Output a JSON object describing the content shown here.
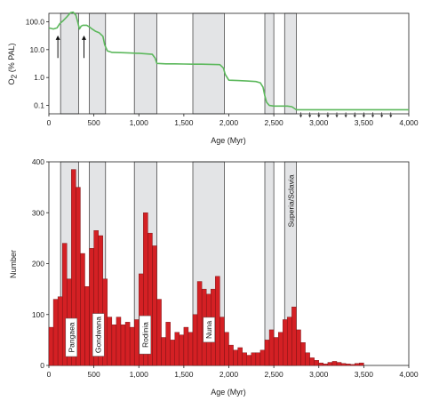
{
  "chart_data": [
    {
      "type": "line",
      "ylabel": "O",
      "ylabel_sub": "2",
      "ylabel_rest": " (% PAL)",
      "xlabel": "Age (Myr)",
      "yscale": "log",
      "ylim": [
        0.05,
        200
      ],
      "xlim": [
        0,
        4000
      ],
      "yticks": [
        {
          "v": 100,
          "label": "100.0"
        },
        {
          "v": 10,
          "label": "10.0"
        },
        {
          "v": 1,
          "label": "1.0"
        },
        {
          "v": 0.1,
          "label": "0.1"
        }
      ],
      "xticks": [
        {
          "v": 0,
          "label": "0"
        },
        {
          "v": 500,
          "label": "500"
        },
        {
          "v": 1000,
          "label": "1,000"
        },
        {
          "v": 1500,
          "label": "1,500"
        },
        {
          "v": 2000,
          "label": "2,000"
        },
        {
          "v": 2500,
          "label": "2,500"
        },
        {
          "v": 3000,
          "label": "3,000"
        },
        {
          "v": 3500,
          "label": "3,500"
        },
        {
          "v": 4000,
          "label": "4,000"
        }
      ],
      "shaded_intervals": [
        [
          130,
          330
        ],
        [
          450,
          630
        ],
        [
          950,
          1200
        ],
        [
          1600,
          1950
        ],
        [
          2400,
          2500
        ],
        [
          2620,
          2750
        ]
      ],
      "series": [
        {
          "color": "#5cb85c",
          "x": [
            0,
            50,
            90,
            120,
            160,
            200,
            240,
            270,
            300,
            320,
            340,
            360,
            380,
            420,
            450,
            480,
            520,
            560,
            600,
            620,
            650,
            700,
            800,
            900,
            980,
            1000,
            1050,
            1100,
            1150,
            1180,
            1200,
            1300,
            1400,
            1500,
            1600,
            1700,
            1800,
            1900,
            1940,
            1960,
            2000,
            2100,
            2200,
            2300,
            2350,
            2380,
            2400,
            2420,
            2450,
            2500,
            2600,
            2650,
            2700,
            2750,
            2800,
            3000,
            3500,
            4000
          ],
          "y": [
            60,
            55,
            60,
            85,
            110,
            150,
            210,
            220,
            170,
            100,
            55,
            70,
            75,
            75,
            65,
            55,
            45,
            40,
            30,
            15,
            9,
            8,
            7.8,
            7.6,
            7.4,
            7.4,
            7.2,
            7,
            6.8,
            5,
            3.2,
            3.1,
            3.1,
            3.05,
            3,
            3,
            2.95,
            2.9,
            2.2,
            1.3,
            0.8,
            0.78,
            0.75,
            0.72,
            0.65,
            0.45,
            0.22,
            0.13,
            0.1,
            0.095,
            0.095,
            0.095,
            0.09,
            0.07,
            0.07,
            0.07,
            0.07,
            0.07
          ]
        }
      ],
      "arrows_up": [
        100,
        390
      ],
      "arrows_down": [
        2800,
        2900,
        3000,
        3100,
        3200,
        3300,
        3400,
        3500,
        3600,
        3700,
        3800
      ]
    },
    {
      "type": "bar",
      "xlabel": "Age (Myr)",
      "ylabel": "Number",
      "xlim": [
        0,
        4000
      ],
      "ylim": [
        0,
        400
      ],
      "bin_width": 50,
      "bar_color": "#d42024",
      "yticks": [
        0,
        100,
        200,
        300,
        400
      ],
      "xticks": [
        {
          "v": 0,
          "label": "0"
        },
        {
          "v": 500,
          "label": "500"
        },
        {
          "v": 1000,
          "label": "1,000"
        },
        {
          "v": 1500,
          "label": "1,500"
        },
        {
          "v": 2000,
          "label": "2,000"
        },
        {
          "v": 2500,
          "label": "2,500"
        },
        {
          "v": 3000,
          "label": "3,000"
        },
        {
          "v": 3500,
          "label": "3,500"
        },
        {
          "v": 4000,
          "label": "4,000"
        }
      ],
      "bins_start": [
        0,
        50,
        100,
        150,
        200,
        250,
        300,
        350,
        400,
        450,
        500,
        550,
        600,
        650,
        700,
        750,
        800,
        850,
        900,
        950,
        1000,
        1050,
        1100,
        1150,
        1200,
        1250,
        1300,
        1350,
        1400,
        1450,
        1500,
        1550,
        1600,
        1650,
        1700,
        1750,
        1800,
        1850,
        1900,
        1950,
        2000,
        2050,
        2100,
        2150,
        2200,
        2250,
        2300,
        2350,
        2400,
        2450,
        2500,
        2550,
        2600,
        2650,
        2700,
        2750,
        2800,
        2850,
        2900,
        2950,
        3000,
        3050,
        3100,
        3150,
        3200,
        3250,
        3300,
        3350,
        3400,
        3450
      ],
      "values": [
        75,
        130,
        135,
        240,
        170,
        385,
        350,
        220,
        155,
        230,
        265,
        255,
        170,
        95,
        80,
        95,
        80,
        85,
        75,
        90,
        180,
        300,
        260,
        235,
        130,
        55,
        85,
        50,
        65,
        60,
        75,
        65,
        100,
        165,
        150,
        140,
        150,
        175,
        95,
        65,
        40,
        30,
        35,
        25,
        20,
        25,
        25,
        30,
        50,
        70,
        55,
        65,
        90,
        95,
        115,
        70,
        45,
        25,
        15,
        10,
        5,
        3,
        6,
        8,
        6,
        4,
        3,
        2,
        4,
        5
      ],
      "shaded_intervals": [
        [
          130,
          330
        ],
        [
          450,
          630
        ],
        [
          950,
          1200
        ],
        [
          1600,
          1950
        ],
        [
          2400,
          2500
        ],
        [
          2620,
          2750
        ]
      ],
      "band_labels": [
        {
          "text": "Pangaea",
          "x": 250,
          "y": 55
        },
        {
          "text": "Gondwana",
          "x": 550,
          "y": 60
        },
        {
          "text": "Rodinia",
          "x": 1070,
          "y": 60
        },
        {
          "text": "Nuna",
          "x": 1780,
          "y": 70
        }
      ],
      "top_label": {
        "text": "Superia/Sclavia",
        "x": 2690
      }
    }
  ]
}
